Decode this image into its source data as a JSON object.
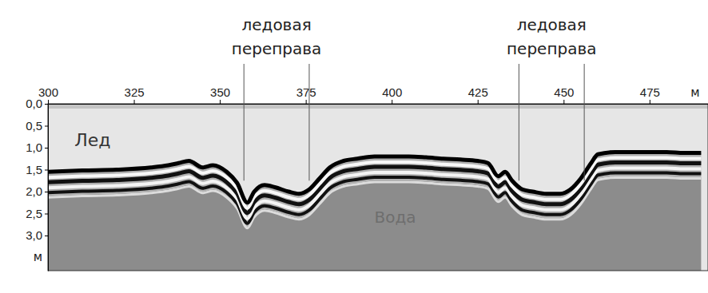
{
  "chart_data": {
    "type": "line",
    "color": "#000000",
    "x": [
      300,
      310,
      320,
      330,
      335,
      338,
      341,
      345,
      348,
      352,
      355,
      358,
      360,
      363,
      366,
      370,
      373,
      376,
      379,
      382,
      386,
      390,
      395,
      400,
      405,
      410,
      415,
      420,
      425,
      428,
      431,
      433,
      435,
      438,
      441,
      445,
      449,
      452,
      455,
      458,
      460,
      465,
      470,
      475,
      480,
      485,
      490
    ],
    "values": [
      1.55,
      1.52,
      1.5,
      1.45,
      1.4,
      1.35,
      1.3,
      1.45,
      1.4,
      1.55,
      1.8,
      2.25,
      2.0,
      1.85,
      1.9,
      2.0,
      2.05,
      1.95,
      1.7,
      1.45,
      1.3,
      1.25,
      1.2,
      1.2,
      1.2,
      1.22,
      1.25,
      1.27,
      1.3,
      1.35,
      1.65,
      1.55,
      1.75,
      1.95,
      2.0,
      2.05,
      2.05,
      1.95,
      1.7,
      1.35,
      1.15,
      1.1,
      1.1,
      1.1,
      1.1,
      1.12,
      1.12
    ],
    "xlim": [
      300,
      492
    ],
    "xticks": [
      300,
      325,
      350,
      375,
      400,
      425,
      450,
      475
    ],
    "ylim": [
      0,
      3.8
    ],
    "yticks": [
      {
        "value": 0,
        "label": "0,0"
      },
      {
        "value": 0.5,
        "label": "0,5"
      },
      {
        "value": 1,
        "label": "1,0"
      },
      {
        "value": 1.5,
        "label": "1,5"
      },
      {
        "value": 2,
        "label": "2,0"
      },
      {
        "value": 2.5,
        "label": "2,5"
      },
      {
        "value": 3,
        "label": "3,0"
      }
    ],
    "x_label": "м",
    "y_label": "м",
    "annotations": [
      {
        "text": "Лед",
        "x": 313,
        "y": 0.85
      },
      {
        "text": "Вода",
        "x": 401,
        "y": 2.6
      }
    ],
    "crossings": [
      {
        "lines": [
          "ледовая",
          "переправа"
        ],
        "x0": 357,
        "x1": 376
      },
      {
        "lines": [
          "ледовая",
          "переправа"
        ],
        "x0": 437,
        "x1": 456
      }
    ]
  }
}
